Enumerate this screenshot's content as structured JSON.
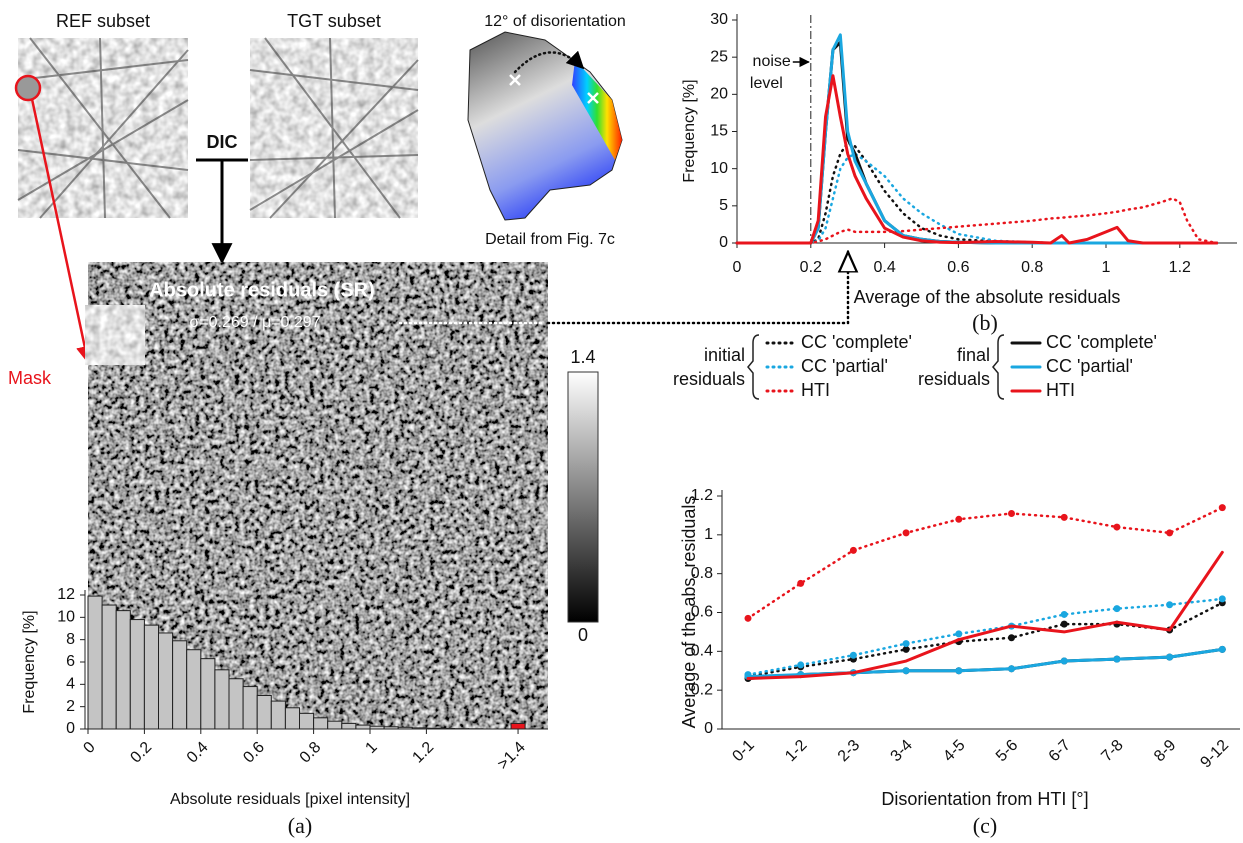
{
  "chart_data": [
    {
      "type": "histogram",
      "ylabel": "Frequency [%]",
      "xlabel": "Absolute residuals [pixel intensity]",
      "panel": "(a)",
      "bins": [
        0,
        0.05,
        0.1,
        0.15,
        0.2,
        0.25,
        0.3,
        0.35,
        0.4,
        0.45,
        0.5,
        0.55,
        0.6,
        0.65,
        0.7,
        0.75,
        0.8,
        0.85,
        0.9,
        0.95,
        1,
        1.05,
        1.1,
        1.15,
        1.2,
        1.25,
        1.3,
        1.35,
        1.4
      ],
      "values": [
        11.9,
        11.1,
        10.6,
        9.8,
        9.3,
        8.6,
        7.9,
        7.1,
        6.3,
        5.3,
        4.5,
        3.8,
        3.0,
        2.5,
        1.9,
        1.4,
        1.0,
        0.7,
        0.5,
        0.35,
        0.25,
        0.2,
        0.15,
        0.1,
        0.07,
        0.05,
        0.03,
        0.02
      ],
      "color": "#c4c4c4",
      "overflow": {
        "bins": [
          1.5,
          1.55
        ],
        "values": [
          0.5
        ],
        "color": "#e8141c"
      },
      "xlim": [
        0,
        1.6
      ],
      "ylim": [
        0,
        12
      ],
      "xticks": [
        0,
        0.2,
        0.4,
        0.6,
        0.8,
        1,
        1.2,
        {
          "value": 1.525,
          "label": ">1.4"
        }
      ],
      "yticks": [
        0,
        2,
        4,
        6,
        8,
        10,
        12
      ],
      "colorbar": {
        "lim": [
          0,
          1.4
        ],
        "ticks": [
          0,
          1.4
        ]
      }
    },
    {
      "type": "line",
      "ylabel": "Frequency [%]",
      "xlabel": "Average of the absolute residuals",
      "panel": "(b)",
      "x": [
        0,
        0.2,
        0.22,
        0.24,
        0.26,
        0.28,
        0.3,
        0.32,
        0.35,
        0.4,
        0.45,
        0.5,
        0.55,
        0.6,
        0.7,
        0.8,
        0.85,
        0.88,
        0.9,
        0.95,
        1.0,
        1.03,
        1.06,
        1.1,
        1.15,
        1.18,
        1.2,
        1.22,
        1.25,
        1.3
      ],
      "series": [
        {
          "color": "#111111",
          "style": "dotted",
          "values": [
            0,
            0,
            0.5,
            4,
            9,
            12,
            13.5,
            13,
            11,
            7,
            4,
            2,
            1,
            0.5,
            0.2,
            0.1,
            0,
            0,
            0,
            0,
            0,
            0,
            0,
            0,
            0,
            0,
            0,
            0,
            0,
            0
          ]
        },
        {
          "color": "#1aa7e0",
          "style": "dotted",
          "values": [
            0,
            0,
            0.3,
            2,
            6,
            10,
            11.5,
            12,
            11,
            9,
            6,
            4,
            2.5,
            1.2,
            0.3,
            0.1,
            0,
            0,
            0,
            0,
            0,
            0,
            0,
            0,
            0,
            0,
            0,
            0,
            0,
            0
          ]
        },
        {
          "color": "#e8141c",
          "style": "dotted",
          "values": [
            0,
            0,
            0.2,
            0.5,
            1,
            1.5,
            1.8,
            1.5,
            1.5,
            1.5,
            1.6,
            1.8,
            2,
            2.2,
            2.6,
            3,
            3.3,
            3.4,
            3.5,
            3.7,
            4,
            4.2,
            4.5,
            4.8,
            5.5,
            6,
            5.5,
            3,
            0.5,
            0
          ]
        },
        {
          "color": "#111111",
          "style": "solid",
          "values": [
            0,
            0,
            2,
            15,
            26,
            27,
            14,
            12,
            8,
            3,
            1,
            0.5,
            0.2,
            0.1,
            0,
            0,
            0,
            0,
            0,
            0,
            0,
            0,
            0,
            0,
            0,
            0,
            0,
            0,
            0,
            0
          ]
        },
        {
          "color": "#1aa7e0",
          "style": "solid",
          "values": [
            0,
            0,
            2,
            15,
            26,
            28,
            15,
            11,
            8,
            3,
            1,
            0.5,
            0.2,
            0.1,
            0,
            0,
            0,
            0,
            0,
            0,
            0,
            0,
            0,
            0,
            0,
            0,
            0,
            0,
            0,
            0
          ]
        },
        {
          "color": "#e8141c",
          "style": "solid",
          "values": [
            0,
            0,
            3,
            17,
            22.5,
            17,
            12,
            9,
            6,
            2,
            0.8,
            0.3,
            0.1,
            0.05,
            0.2,
            0.1,
            0,
            1,
            0,
            0.5,
            1.5,
            2.1,
            0.3,
            0,
            0,
            0,
            0,
            0,
            0,
            0
          ]
        }
      ],
      "xlim": [
        0,
        1.35
      ],
      "ylim": [
        0,
        30
      ],
      "xticks": [
        0,
        0.2,
        0.4,
        0.6,
        0.8,
        1,
        1.2
      ],
      "yticks": [
        0,
        5,
        10,
        15,
        20,
        25,
        30
      ],
      "noise_level": {
        "x": 0.2,
        "text": [
          "noise",
          "level"
        ]
      }
    },
    {
      "type": "line",
      "ylabel": "Average of the abs. residuals",
      "xlabel": "Disorientation from HTI [°]",
      "panel": "(c)",
      "categories": [
        "0-1",
        "1-2",
        "2-3",
        "3-4",
        "4-5",
        "5-6",
        "6-7",
        "7-8",
        "8-9",
        "9-12"
      ],
      "legend_groups": [
        [
          "initial",
          "residuals"
        ],
        [
          "final",
          "residuals"
        ]
      ],
      "series": [
        {
          "name": "CC 'complete'",
          "color": "#111111",
          "style": "dotted",
          "values": [
            0.27,
            0.32,
            0.36,
            0.41,
            0.45,
            0.47,
            0.54,
            0.54,
            0.51,
            0.65
          ]
        },
        {
          "name": "CC 'partial'",
          "color": "#1aa7e0",
          "style": "dotted",
          "values": [
            0.28,
            0.33,
            0.38,
            0.44,
            0.49,
            0.53,
            0.59,
            0.62,
            0.64,
            0.67
          ]
        },
        {
          "name": "HTI",
          "color": "#e8141c",
          "style": "dotted",
          "values": [
            0.57,
            0.75,
            0.92,
            1.01,
            1.08,
            1.11,
            1.09,
            1.04,
            1.01,
            1.14
          ]
        },
        {
          "name": "CC 'complete'",
          "color": "#111111",
          "style": "solid",
          "values": [
            0.26,
            0.28,
            0.29,
            0.3,
            0.3,
            0.31,
            0.35,
            0.36,
            0.37,
            0.41
          ]
        },
        {
          "name": "CC 'partial'",
          "color": "#1aa7e0",
          "style": "solid",
          "values": [
            0.27,
            0.28,
            0.29,
            0.3,
            0.3,
            0.31,
            0.35,
            0.36,
            0.37,
            0.41
          ]
        },
        {
          "name": "HTI",
          "color": "#e8141c",
          "style": "solid",
          "values": [
            0.26,
            0.27,
            0.29,
            0.35,
            0.46,
            0.53,
            0.5,
            0.55,
            0.51,
            0.91
          ]
        }
      ],
      "ylim": [
        0,
        1.2
      ],
      "yticks": [
        0,
        0.2,
        0.4,
        0.6,
        0.8,
        1,
        1.2
      ]
    }
  ],
  "annotations": {
    "ref": "REF subset",
    "tgt": "TGT subset",
    "dic": "DIC",
    "disorientation": "12° of disorientation",
    "detail": "Detail from Fig. 7c",
    "residuals_title": "Absolute residuals (SR)",
    "stats": "σ=0.269 / μ=0.297",
    "mask": "Mask"
  }
}
